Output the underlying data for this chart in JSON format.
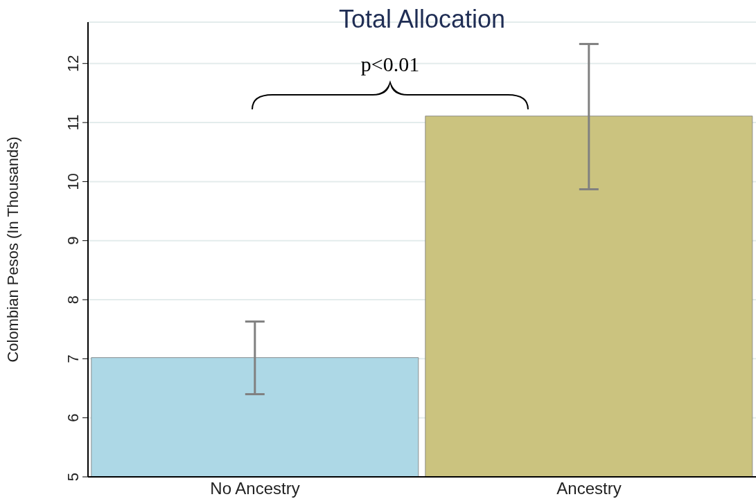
{
  "chart_data": {
    "type": "bar",
    "title": "Total Allocation",
    "ylabel": "Colombian Pesos (In Thousands)",
    "categories": [
      "No Ancestry",
      "Ancestry"
    ],
    "values": [
      7.02,
      11.11
    ],
    "colors": [
      "#add8e6",
      "#cbc37f"
    ],
    "errors": [
      [
        6.4,
        7.63
      ],
      [
        9.87,
        12.33
      ]
    ],
    "ylim": [
      5,
      12.7
    ],
    "yticks": [
      5,
      6,
      7,
      8,
      9,
      10,
      11,
      12
    ],
    "grid": "y",
    "annotations": [
      "p<0.01"
    ]
  }
}
